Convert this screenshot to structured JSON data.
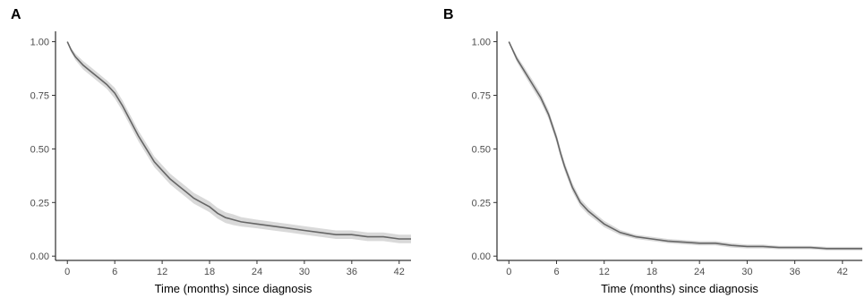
{
  "chart_data": [
    {
      "panel": "A",
      "type": "line",
      "xlabel": "Time (months) since diagnosis",
      "ylabel": "",
      "xlim": [
        -1.5,
        43.5
      ],
      "ylim": [
        -0.02,
        1.04
      ],
      "xticks": [
        0,
        6,
        12,
        18,
        24,
        30,
        36,
        42
      ],
      "yticks": [
        0.0,
        0.25,
        0.5,
        0.75,
        1.0
      ],
      "ytick_labels": [
        "0.00",
        "0.25",
        "0.50",
        "0.75",
        "1.00"
      ],
      "grid": false,
      "colors": {
        "line": "#666666",
        "band": "#d9d9d9"
      },
      "series": [
        {
          "x": [
            0,
            0.5,
            1,
            2,
            3,
            4,
            5,
            6,
            7,
            8,
            9,
            10,
            11,
            12,
            13,
            14,
            15,
            16,
            17,
            18,
            19,
            20,
            21,
            22,
            24,
            26,
            28,
            30,
            32,
            34,
            36,
            38,
            40,
            42,
            43.5
          ],
          "y": [
            1.0,
            0.96,
            0.93,
            0.89,
            0.86,
            0.83,
            0.8,
            0.76,
            0.7,
            0.63,
            0.56,
            0.5,
            0.44,
            0.4,
            0.36,
            0.33,
            0.3,
            0.27,
            0.25,
            0.23,
            0.2,
            0.18,
            0.17,
            0.16,
            0.15,
            0.14,
            0.13,
            0.12,
            0.11,
            0.1,
            0.1,
            0.09,
            0.09,
            0.08,
            0.08
          ],
          "ci": [
            0.0,
            0.01,
            0.015,
            0.02,
            0.02,
            0.02,
            0.02,
            0.025,
            0.025,
            0.025,
            0.025,
            0.025,
            0.025,
            0.025,
            0.025,
            0.025,
            0.025,
            0.025,
            0.025,
            0.025,
            0.025,
            0.025,
            0.025,
            0.022,
            0.02,
            0.02,
            0.02,
            0.02,
            0.02,
            0.02,
            0.02,
            0.02,
            0.02,
            0.02,
            0.02
          ]
        }
      ]
    },
    {
      "panel": "B",
      "type": "line",
      "xlabel": "Time (months) since diagnosis",
      "ylabel": "",
      "xlim": [
        -1.5,
        44.5
      ],
      "ylim": [
        -0.02,
        1.04
      ],
      "xticks": [
        0,
        6,
        12,
        18,
        24,
        30,
        36,
        42
      ],
      "yticks": [
        0.0,
        0.25,
        0.5,
        0.75,
        1.0
      ],
      "ytick_labels": [
        "0.00",
        "0.25",
        "0.50",
        "0.75",
        "1.00"
      ],
      "grid": false,
      "colors": {
        "line": "#666666",
        "band": "#d9d9d9"
      },
      "series": [
        {
          "x": [
            0,
            0.5,
            1,
            2,
            3,
            4,
            5,
            6,
            6.5,
            7,
            7.5,
            8,
            9,
            10,
            11,
            12,
            13,
            14,
            15,
            16,
            18,
            20,
            22,
            24,
            26,
            28,
            30,
            32,
            34,
            36,
            38,
            40,
            42,
            44.5
          ],
          "y": [
            1.0,
            0.96,
            0.92,
            0.86,
            0.8,
            0.74,
            0.66,
            0.55,
            0.48,
            0.42,
            0.37,
            0.32,
            0.25,
            0.21,
            0.18,
            0.15,
            0.13,
            0.11,
            0.1,
            0.09,
            0.08,
            0.07,
            0.065,
            0.06,
            0.06,
            0.05,
            0.045,
            0.045,
            0.04,
            0.04,
            0.04,
            0.035,
            0.035,
            0.035
          ],
          "ci": [
            0.0,
            0.01,
            0.015,
            0.018,
            0.02,
            0.02,
            0.02,
            0.02,
            0.02,
            0.02,
            0.02,
            0.02,
            0.018,
            0.017,
            0.015,
            0.015,
            0.013,
            0.012,
            0.011,
            0.01,
            0.01,
            0.01,
            0.01,
            0.01,
            0.01,
            0.01,
            0.009,
            0.009,
            0.008,
            0.008,
            0.008,
            0.008,
            0.008,
            0.008
          ]
        }
      ]
    }
  ]
}
